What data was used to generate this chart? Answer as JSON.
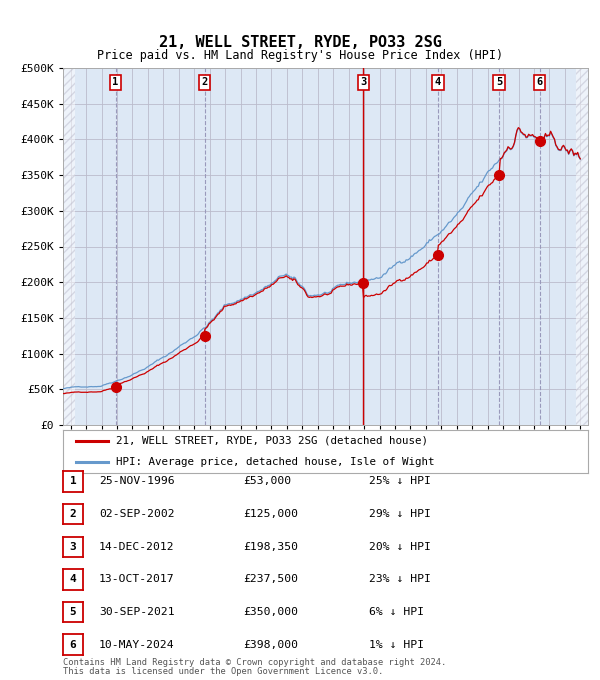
{
  "title": "21, WELL STREET, RYDE, PO33 2SG",
  "subtitle": "Price paid vs. HM Land Registry's House Price Index (HPI)",
  "legend_line1": "21, WELL STREET, RYDE, PO33 2SG (detached house)",
  "legend_line2": "HPI: Average price, detached house, Isle of Wight",
  "footer1": "Contains HM Land Registry data © Crown copyright and database right 2024.",
  "footer2": "This data is licensed under the Open Government Licence v3.0.",
  "chart_bg": "#dde8f5",
  "hpi_color": "#6699cc",
  "price_color": "#cc0000",
  "marker_color": "#cc0000",
  "vline_dashed_color": "#9999bb",
  "vline_red_color": "#cc0000",
  "grid_color": "#bbbbcc",
  "ylim": [
    0,
    500000
  ],
  "yticks": [
    0,
    50000,
    100000,
    150000,
    200000,
    250000,
    300000,
    350000,
    400000,
    450000,
    500000
  ],
  "ytick_labels": [
    "£0",
    "£50K",
    "£100K",
    "£150K",
    "£200K",
    "£250K",
    "£300K",
    "£350K",
    "£400K",
    "£450K",
    "£500K"
  ],
  "xmin": 1993.5,
  "xmax": 2027.5,
  "transactions": [
    {
      "num": 1,
      "date": "25-NOV-1996",
      "year": 1996.9,
      "price": 53000,
      "pct": "25%",
      "vline_style": "dashed"
    },
    {
      "num": 2,
      "date": "02-SEP-2002",
      "year": 2002.67,
      "price": 125000,
      "pct": "29%",
      "vline_style": "dashed"
    },
    {
      "num": 3,
      "date": "14-DEC-2012",
      "year": 2012.96,
      "price": 198350,
      "pct": "20%",
      "vline_style": "solid_red"
    },
    {
      "num": 4,
      "date": "13-OCT-2017",
      "year": 2017.78,
      "price": 237500,
      "pct": "23%",
      "vline_style": "dashed"
    },
    {
      "num": 5,
      "date": "30-SEP-2021",
      "year": 2021.75,
      "price": 350000,
      "pct": "6%",
      "vline_style": "dashed"
    },
    {
      "num": 6,
      "date": "10-MAY-2024",
      "year": 2024.36,
      "price": 398000,
      "pct": "1%",
      "vline_style": "dashed"
    }
  ],
  "table_rows": [
    {
      "num": 1,
      "date": "25-NOV-1996",
      "price": "£53,000",
      "pct": "25% ↓ HPI"
    },
    {
      "num": 2,
      "date": "02-SEP-2002",
      "price": "£125,000",
      "pct": "29% ↓ HPI"
    },
    {
      "num": 3,
      "date": "14-DEC-2012",
      "price": "£198,350",
      "pct": "20% ↓ HPI"
    },
    {
      "num": 4,
      "date": "13-OCT-2017",
      "price": "£237,500",
      "pct": "23% ↓ HPI"
    },
    {
      "num": 5,
      "date": "30-SEP-2021",
      "price": "£350,000",
      "pct": "6% ↓ HPI"
    },
    {
      "num": 6,
      "date": "10-MAY-2024",
      "price": "£398,000",
      "pct": "1% ↓ HPI"
    }
  ]
}
